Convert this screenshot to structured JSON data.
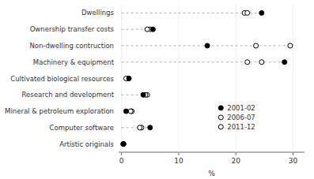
{
  "chart_data": {
    "type": "dot",
    "categories": [
      "Artistic originals",
      "Computer software",
      "Mineral & petroleum exploration",
      "Research and development",
      "Cultivated biological resources",
      "Machinery & equipment",
      "Non-dwelling contruction",
      "Ownership transfer costs",
      "Dwellings"
    ],
    "series": [
      {
        "name": "2001-02",
        "color": "#000000",
        "marker": "filled-circle",
        "values": [
          0.3,
          5.0,
          0.8,
          3.8,
          1.3,
          28.5,
          15.0,
          5.5,
          24.5
        ]
      },
      {
        "name": "2006-07",
        "color": "#000000",
        "marker": "open-circle",
        "values": [
          0.4,
          3.2,
          1.6,
          4.2,
          0.8,
          22.0,
          23.5,
          4.5,
          22.0
        ]
      },
      {
        "name": "2011-12",
        "color": "#000000",
        "marker": "open-circle",
        "values": [
          0.3,
          3.5,
          1.8,
          4.5,
          1.0,
          24.5,
          29.5,
          5.0,
          21.5
        ]
      }
    ],
    "guide_lines": {
      "values": [
        null,
        5.0,
        null,
        4.5,
        null,
        28.5,
        29.5,
        5.5,
        24.5
      ],
      "line_style": "dashed",
      "color": "#999999"
    },
    "xlabel": "%",
    "xlim": [
      -0.5,
      32
    ],
    "xticks": [
      0,
      10,
      20,
      30
    ],
    "legend": "lower right"
  }
}
